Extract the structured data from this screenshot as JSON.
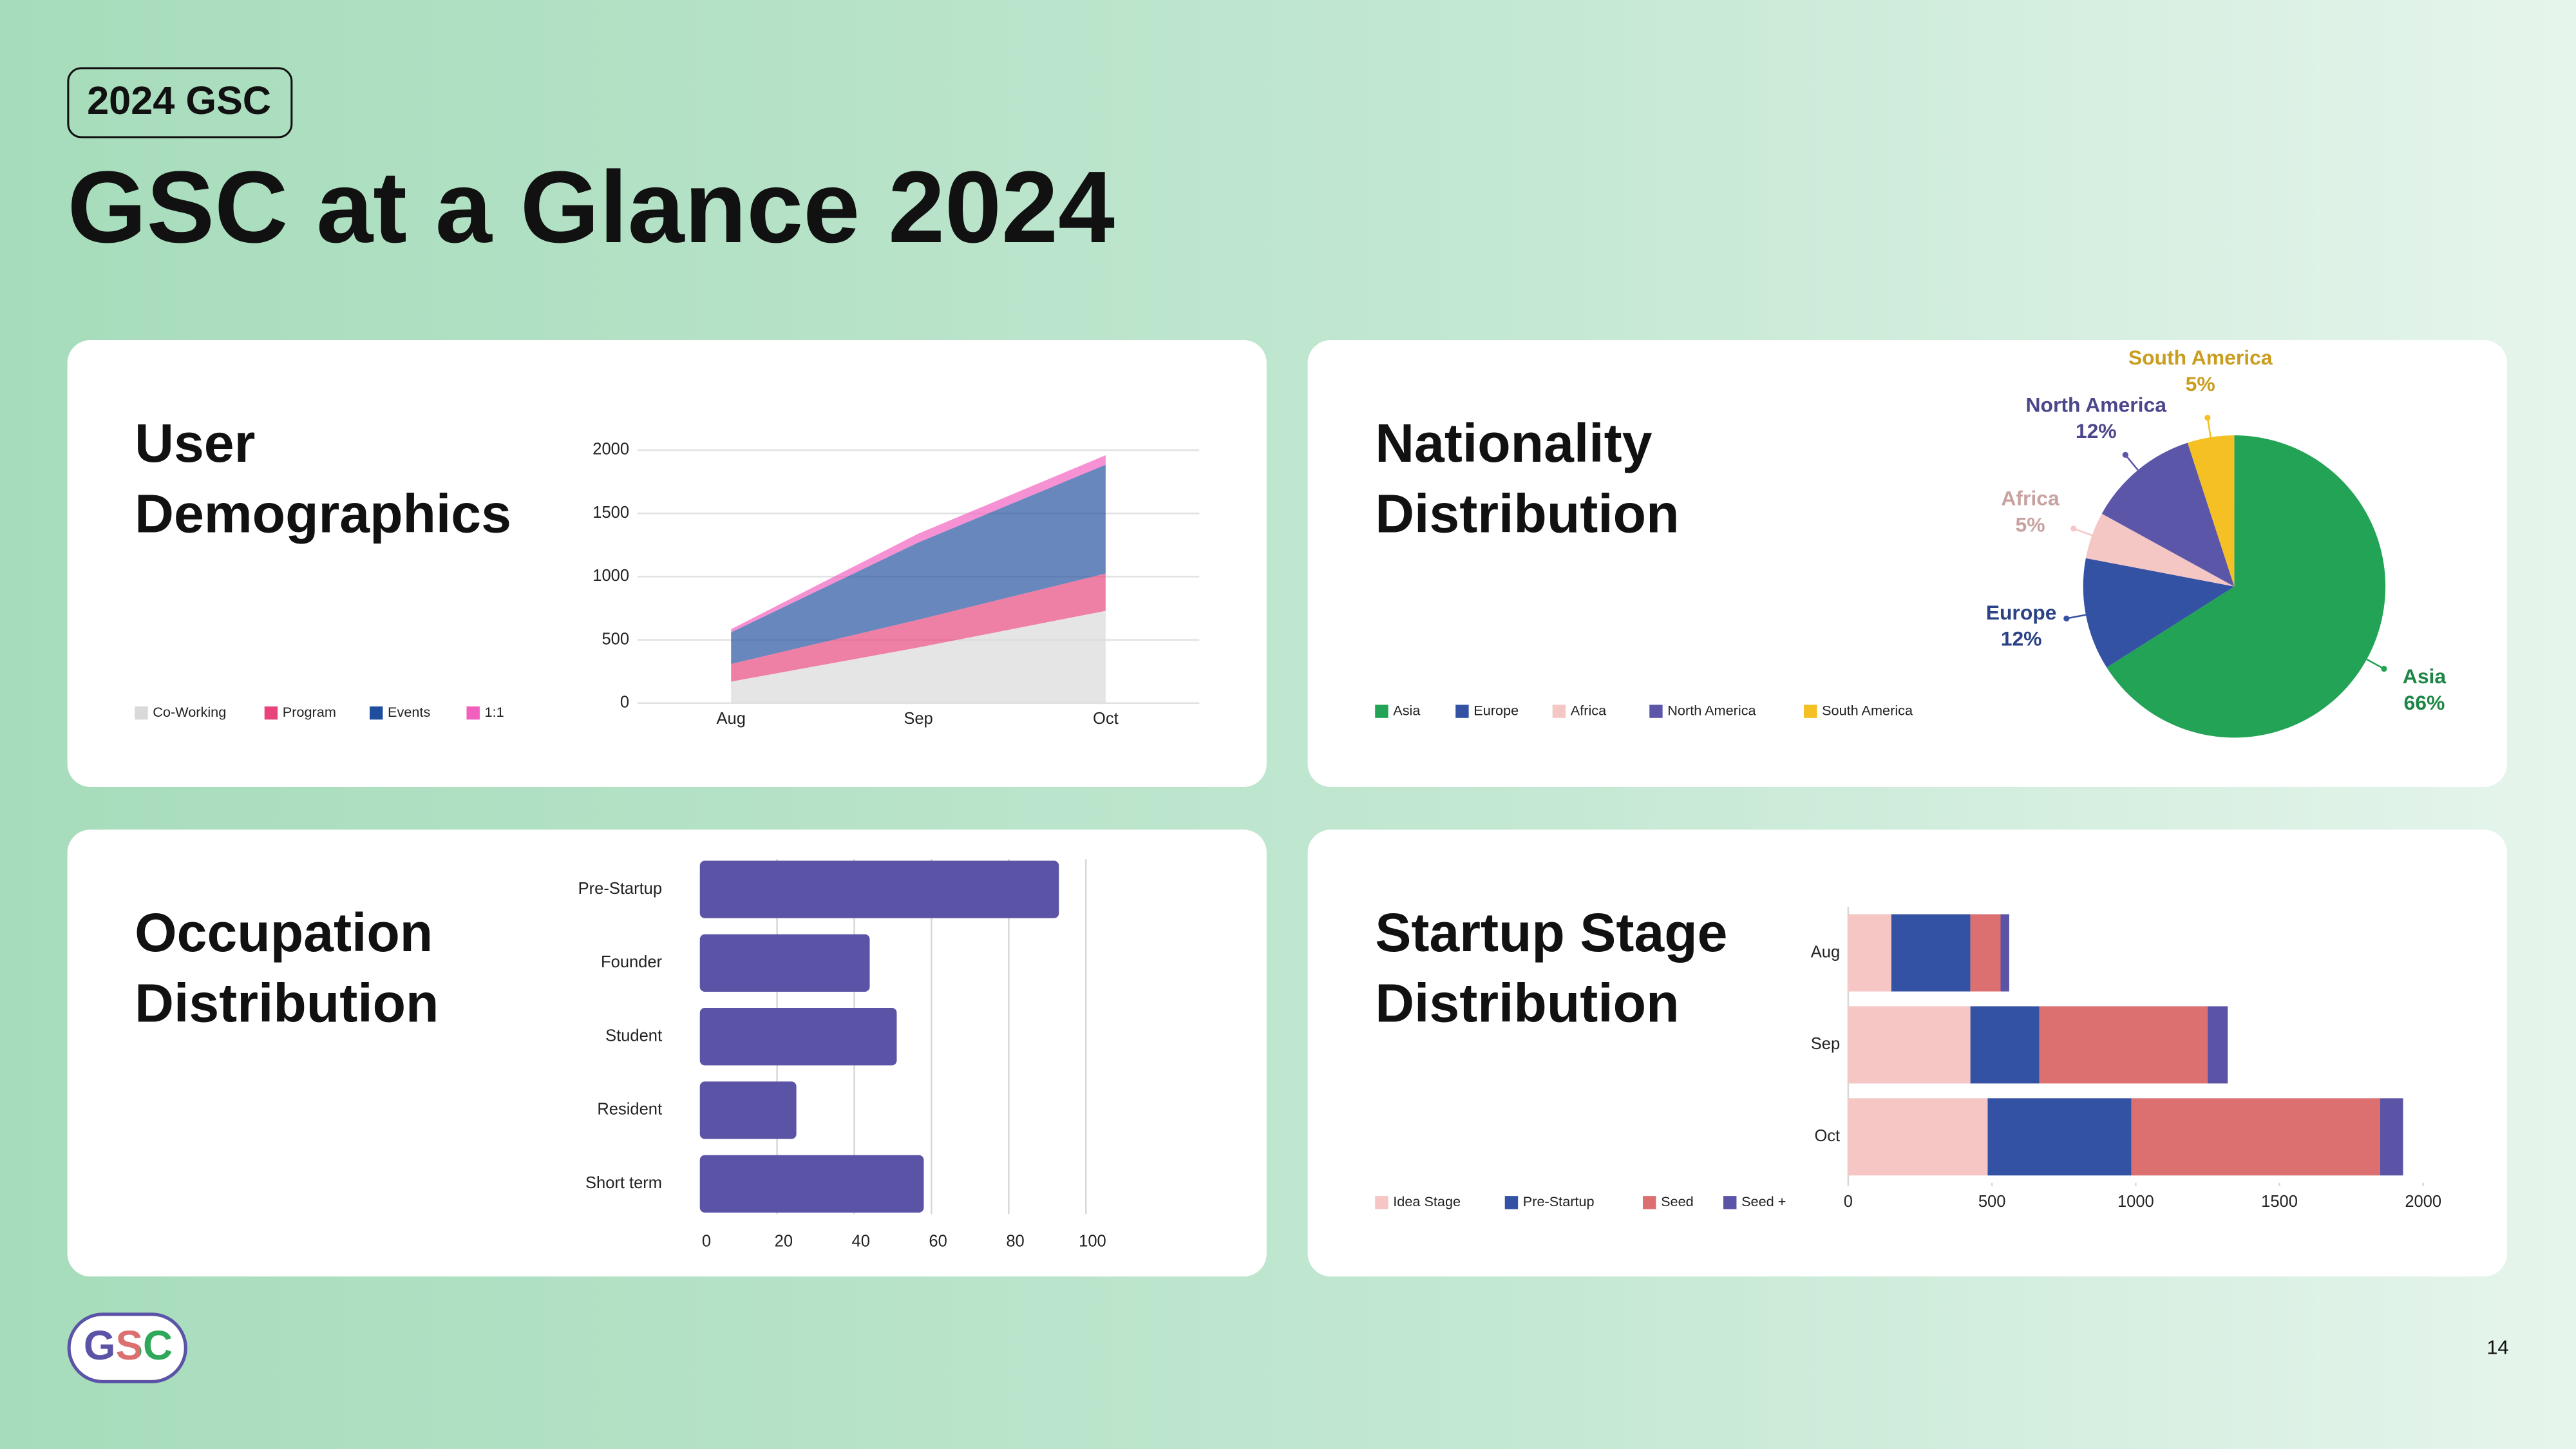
{
  "header": {
    "badge": "2024 GSC",
    "title": "GSC at a Glance 2024"
  },
  "chart_data": [
    {
      "type": "area",
      "title": "User Demographics",
      "categories": [
        "Aug",
        "Sep",
        "Oct"
      ],
      "series": [
        {
          "name": "Co-Working",
          "color": "#d9d9d9",
          "values": [
            170,
            440,
            730
          ]
        },
        {
          "name": "Program",
          "color": "#e8447a",
          "values": [
            140,
            220,
            295
          ]
        },
        {
          "name": "Events",
          "color": "#1f4e9e",
          "values": [
            250,
            610,
            860
          ]
        },
        {
          "name": "1:1",
          "color": "#f25fbf",
          "values": [
            25,
            70,
            75
          ]
        }
      ],
      "ylim": [
        0,
        2000
      ],
      "yticks": [
        0,
        500,
        1000,
        1500,
        2000
      ],
      "grid": true,
      "stacked": true
    },
    {
      "type": "pie",
      "title": "Nationality Distribution",
      "categories": [
        "Asia",
        "Europe",
        "Africa",
        "North America",
        "South America"
      ],
      "values": [
        66,
        12,
        5,
        12,
        5
      ],
      "value_labels": [
        "66%",
        "12%",
        "5%",
        "12%",
        "5%"
      ],
      "colors": [
        "#22a355",
        "#3452a3",
        "#f4c6c4",
        "#5b56a8",
        "#f5c024"
      ]
    },
    {
      "type": "hbar",
      "title": "Occupation Distribution",
      "categories": [
        "Pre-Startup",
        "Founder",
        "Student",
        "Resident",
        "Short term"
      ],
      "values": [
        93,
        44,
        51,
        25,
        58
      ],
      "color": "#5b54a6",
      "xlim": [
        0,
        100
      ],
      "xticks": [
        0,
        20,
        40,
        60,
        80,
        100
      ],
      "grid": true
    },
    {
      "type": "stacked-hbar",
      "title": "Startup Stage Distribution",
      "categories": [
        "Aug",
        "Sep",
        "Oct"
      ],
      "series": [
        {
          "name": "Idea Stage",
          "color": "#f5c6c4",
          "values": [
            150,
            425,
            485
          ]
        },
        {
          "name": "Pre-Startup",
          "color": "#3452a3",
          "values": [
            275,
            240,
            500
          ]
        },
        {
          "name": "Seed",
          "color": "#dc7070",
          "values": [
            105,
            585,
            865
          ]
        },
        {
          "name": "Seed +",
          "color": "#5b54a6",
          "values": [
            30,
            70,
            80
          ]
        }
      ],
      "xlim": [
        0,
        2000
      ],
      "xticks": [
        0,
        500,
        1000,
        1500,
        2000
      ]
    }
  ],
  "footer": {
    "logo": "GSC",
    "page_number": 14
  }
}
